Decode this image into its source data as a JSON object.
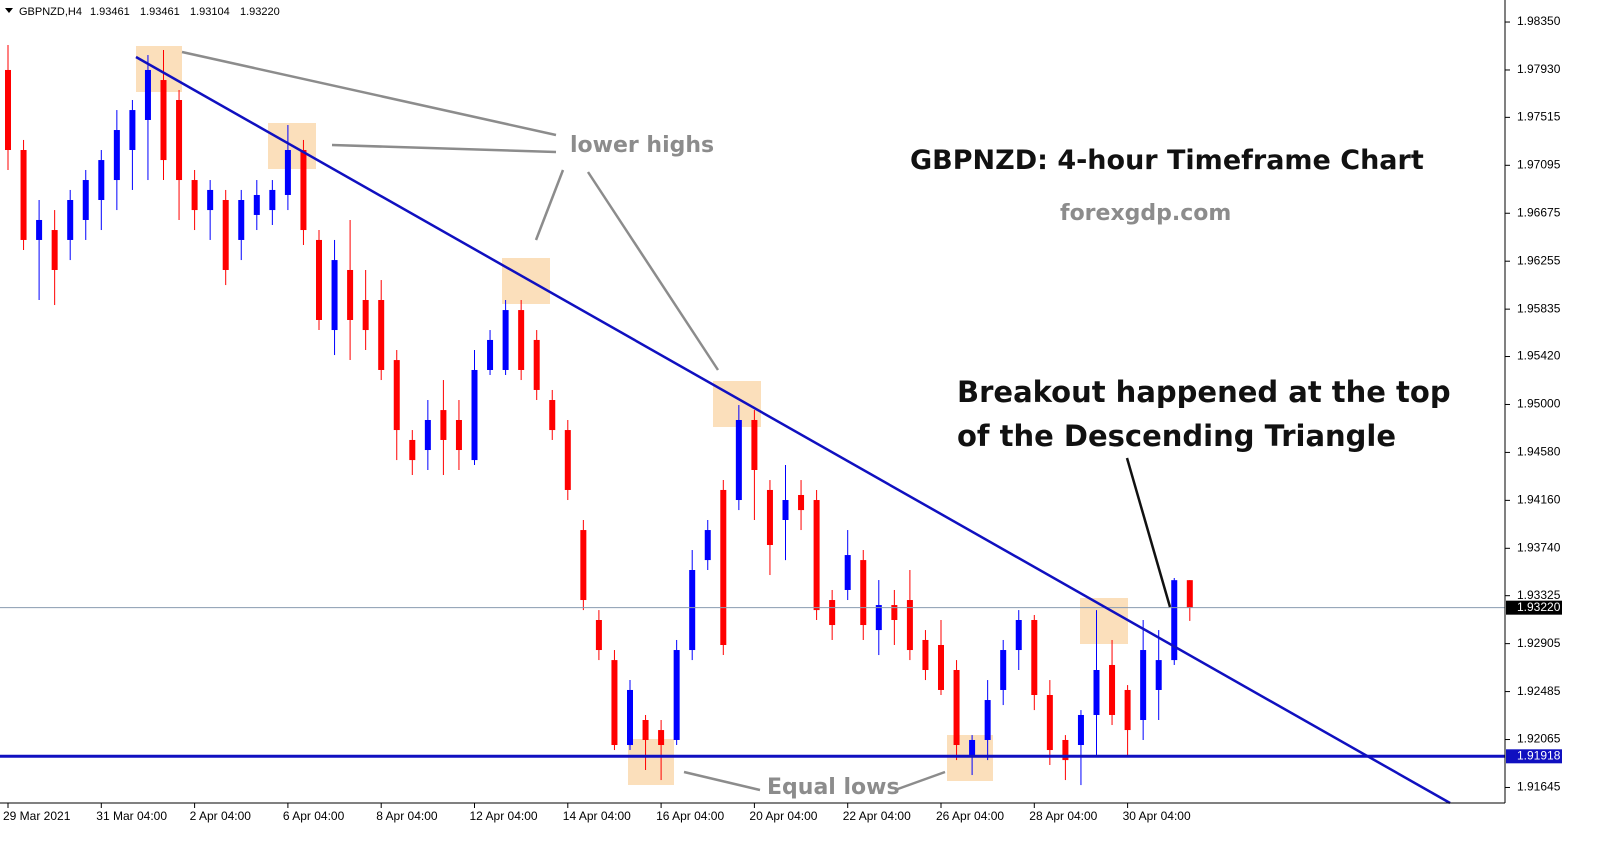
{
  "header": {
    "symbol": "GBPNZD,H4",
    "open": "1.93461",
    "high": "1.93461",
    "low": "1.93104",
    "close": "1.93220"
  },
  "chart_data": {
    "type": "candlestick",
    "title": "GBPNZD: 4-hour Timeframe Chart",
    "subtitle": "forexgdp.com",
    "annotations": [
      "lower highs",
      "Breakout happened at the top",
      "of the Descending Triangle",
      "Equal lows"
    ],
    "up_color": "#0000ff",
    "down_color": "#ff0000",
    "categories": [
      "29 Mar 2021",
      null,
      null,
      null,
      null,
      null,
      "31 Mar 04:00",
      null,
      null,
      null,
      null,
      null,
      "2 Apr 04:00",
      null,
      null,
      null,
      null,
      null,
      "6 Apr 04:00",
      null,
      null,
      null,
      null,
      null,
      "8 Apr 04:00",
      null,
      null,
      null,
      null,
      null,
      "12 Apr 04:00",
      null,
      null,
      null,
      null,
      null,
      "14 Apr 04:00",
      null,
      null,
      null,
      null,
      null,
      "16 Apr 04:00",
      null,
      null,
      null,
      null,
      null,
      "20 Apr 04:00",
      null,
      null,
      null,
      null,
      null,
      "22 Apr 04:00",
      null,
      null,
      null,
      null,
      null,
      "26 Apr 04:00",
      null,
      null,
      null,
      null,
      null,
      "28 Apr 04:00",
      null,
      null,
      null,
      null,
      null,
      "30 Apr 04:00",
      null,
      null,
      null,
      null
    ],
    "open": [
      1.9793,
      1.97229,
      1.96441,
      1.96528,
      1.96441,
      1.96616,
      1.96791,
      1.96966,
      1.97229,
      1.97492,
      1.97842,
      1.97667,
      1.96966,
      1.96703,
      1.96791,
      1.96441,
      1.9666,
      1.96703,
      1.96835,
      1.97229,
      1.96441,
      1.95652,
      1.96178,
      1.95915,
      1.95915,
      1.95389,
      1.94689,
      1.94601,
      1.94951,
      1.94864,
      1.94513,
      1.95302,
      1.95302,
      1.95827,
      1.95565,
      1.95039,
      1.94776,
      1.939,
      1.93112,
      1.92761,
      1.92017,
      1.92236,
      1.92148,
      1.92061,
      1.92849,
      1.93637,
      1.94251,
      1.94163,
      1.94864,
      1.94251,
      1.93988,
      1.94207,
      1.94163,
      1.93287,
      1.93375,
      1.93637,
      1.93024,
      1.93243,
      1.93287,
      1.92937,
      1.92893,
      1.92674,
      1.91929,
      1.92061,
      1.92499,
      1.92849,
      1.93112,
      1.92455,
      1.92061,
      1.92017,
      1.9228,
      1.92718,
      1.92499,
      1.92236,
      1.92499,
      1.92761,
      1.93461
    ],
    "high": [
      1.98149,
      1.97317,
      1.96791,
      1.96703,
      1.96879,
      1.97054,
      1.97229,
      1.97579,
      1.97667,
      1.98061,
      1.98105,
      1.97755,
      1.97054,
      1.96966,
      1.96879,
      1.96879,
      1.96966,
      1.96966,
      1.97448,
      1.97317,
      1.96528,
      1.96441,
      1.96616,
      1.96178,
      1.9609,
      1.95477,
      1.94776,
      1.95039,
      1.95214,
      1.95039,
      1.95477,
      1.95652,
      1.95915,
      1.95915,
      1.95652,
      1.95127,
      1.94864,
      1.93988,
      1.93199,
      1.92849,
      1.92586,
      1.9228,
      1.92236,
      1.92937,
      1.93725,
      1.93988,
      1.94338,
      1.94995,
      1.94951,
      1.94338,
      1.9447,
      1.94338,
      1.94251,
      1.93375,
      1.939,
      1.93725,
      1.93462,
      1.93375,
      1.9355,
      1.93024,
      1.93112,
      1.92761,
      1.92104,
      1.92586,
      1.92937,
      1.93199,
      1.93156,
      1.92586,
      1.92104,
      1.92323,
      1.93199,
      1.92937,
      1.92542,
      1.93112,
      1.93024,
      1.9348,
      1.93461
    ],
    "low": [
      1.97054,
      1.96353,
      1.95915,
      1.95871,
      1.96265,
      1.96441,
      1.96528,
      1.96703,
      1.96879,
      1.96966,
      1.96966,
      1.96616,
      1.96528,
      1.96441,
      1.96046,
      1.96265,
      1.96528,
      1.96572,
      1.96703,
      1.96397,
      1.95652,
      1.95433,
      1.95389,
      1.95477,
      1.95214,
      1.94513,
      1.94382,
      1.94426,
      1.94382,
      1.94426,
      1.9447,
      1.95258,
      1.95258,
      1.95214,
      1.95039,
      1.94689,
      1.94163,
      1.93199,
      1.92761,
      1.91973,
      1.91973,
      1.91798,
      1.9171,
      1.92017,
      1.92761,
      1.9355,
      1.92805,
      1.94075,
      1.93988,
      1.93506,
      1.93637,
      1.939,
      1.93112,
      1.92937,
      1.93287,
      1.92937,
      1.92805,
      1.92893,
      1.92761,
      1.92586,
      1.92455,
      1.91885,
      1.91754,
      1.91885,
      1.92367,
      1.92674,
      1.92323,
      1.91842,
      1.9171,
      1.91666,
      1.91929,
      1.92192,
      1.91929,
      1.92061,
      1.92236,
      1.92718,
      1.93104
    ],
    "close": [
      1.97229,
      1.96441,
      1.96616,
      1.96178,
      1.96791,
      1.96966,
      1.97141,
      1.97404,
      1.97579,
      1.9793,
      1.97141,
      1.96966,
      1.96703,
      1.96879,
      1.96178,
      1.96791,
      1.96835,
      1.96879,
      1.97229,
      1.96528,
      1.9574,
      1.96265,
      1.9574,
      1.95652,
      1.95302,
      1.94776,
      1.94513,
      1.94864,
      1.94689,
      1.94601,
      1.95302,
      1.95565,
      1.95827,
      1.95302,
      1.95127,
      1.94776,
      1.94251,
      1.93287,
      1.92849,
      1.92017,
      1.92499,
      1.92061,
      1.92017,
      1.92849,
      1.9355,
      1.939,
      1.92893,
      1.94864,
      1.94426,
      1.93769,
      1.94163,
      1.94075,
      1.93199,
      1.93068,
      1.93681,
      1.93068,
      1.93243,
      1.93112,
      1.92849,
      1.92674,
      1.92499,
      1.92017,
      1.92061,
      1.92411,
      1.92849,
      1.93112,
      1.92455,
      1.91973,
      1.91885,
      1.9228,
      1.92674,
      1.9228,
      1.92148,
      1.92849,
      1.92761,
      1.93461,
      1.9322
    ],
    "ylim": [
      1.91509,
      1.98543
    ],
    "yticks": [
      {
        "value": 1.9835,
        "label": "1.98350"
      },
      {
        "value": 1.9793,
        "label": "1.97930"
      },
      {
        "value": 1.97515,
        "label": "1.97515"
      },
      {
        "value": 1.97095,
        "label": "1.97095"
      },
      {
        "value": 1.96675,
        "label": "1.96675"
      },
      {
        "value": 1.96255,
        "label": "1.96255"
      },
      {
        "value": 1.95835,
        "label": "1.95835"
      },
      {
        "value": 1.9542,
        "label": "1.95420"
      },
      {
        "value": 1.95,
        "label": "1.95000"
      },
      {
        "value": 1.9458,
        "label": "1.94580"
      },
      {
        "value": 1.9416,
        "label": "1.94160"
      },
      {
        "value": 1.9374,
        "label": "1.93740"
      },
      {
        "value": 1.93325,
        "label": "1.93325"
      },
      {
        "value": 1.92905,
        "label": "1.92905"
      },
      {
        "value": 1.92485,
        "label": "1.92485"
      },
      {
        "value": 1.92065,
        "label": "1.92065"
      },
      {
        "value": 1.91645,
        "label": "1.91645"
      }
    ],
    "current_price": {
      "value": 1.9322,
      "label": "1.93220"
    },
    "support": {
      "value": 1.91918,
      "label": "1.91918"
    }
  }
}
